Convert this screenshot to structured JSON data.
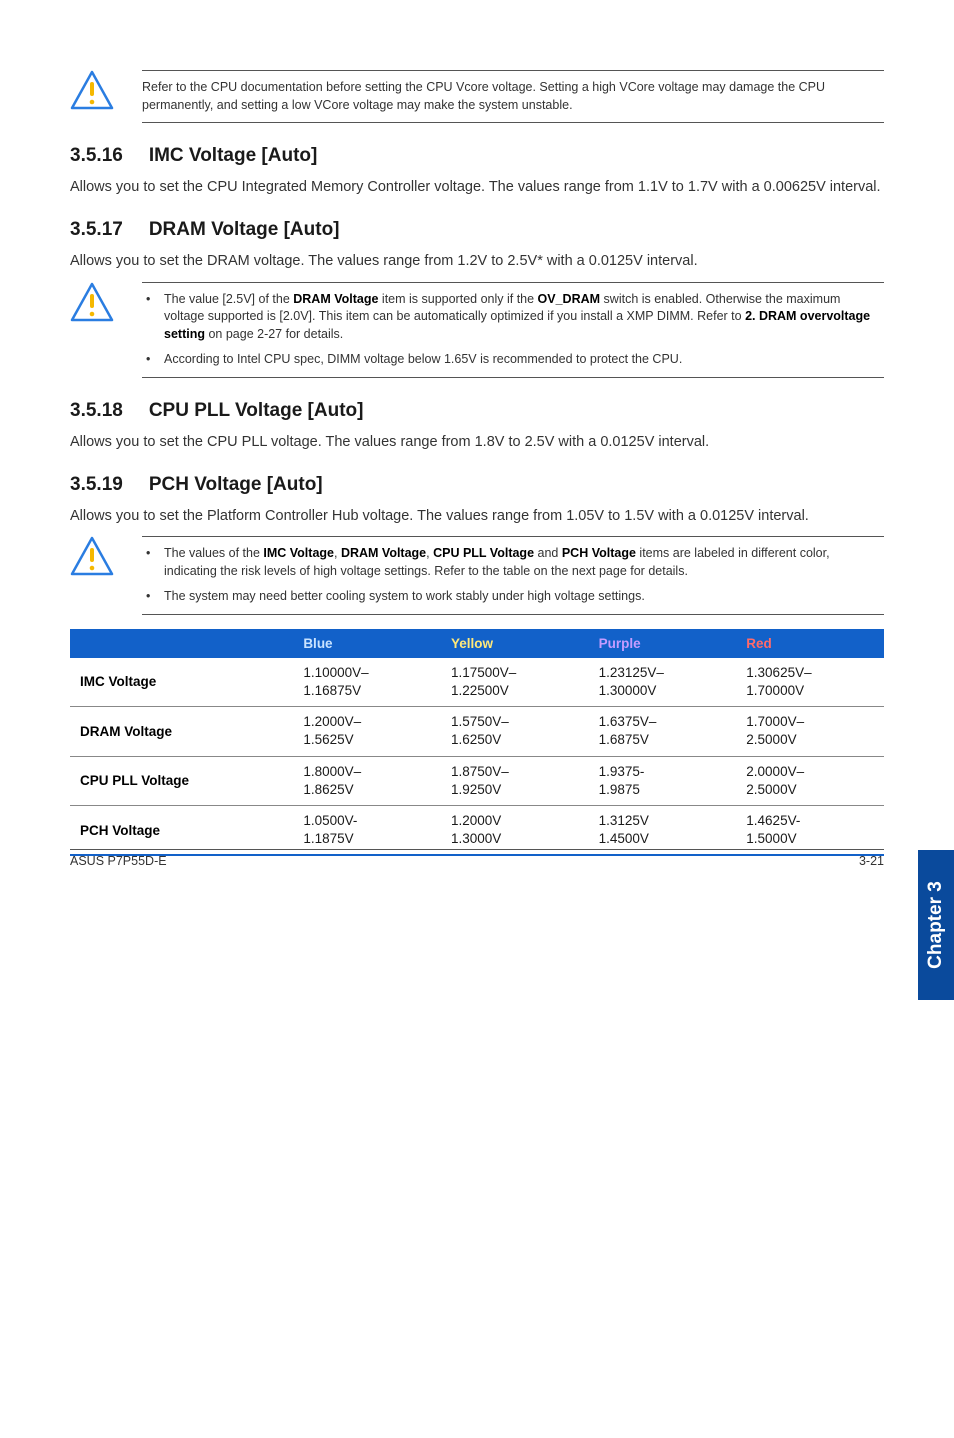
{
  "caution_top": "Refer to the CPU documentation before setting the CPU Vcore voltage. Setting a high VCore voltage may damage the CPU permanently, and setting a low VCore voltage may make the system unstable.",
  "s1": {
    "num": "3.5.16",
    "title": "IMC Voltage [Auto]",
    "body": "Allows you to set the CPU Integrated Memory Controller voltage. The values range from 1.1V to 1.7V with a 0.00625V interval."
  },
  "s2": {
    "num": "3.5.17",
    "title": "DRAM Voltage [Auto]",
    "body": "Allows you to set the DRAM voltage. The values range from 1.2V to 2.5V* with a 0.0125V interval."
  },
  "caution_dram": {
    "item1_pre": "The value [2.5V] of the ",
    "item1_b1": "DRAM Voltage",
    "item1_mid1": " item is supported only if the ",
    "item1_b2": "OV_DRAM",
    "item1_mid2": " switch is enabled. Otherwise the maximum voltage supported is [2.0V]. This item can be automatically optimized if you install a XMP DIMM. Refer to ",
    "item1_b3": "2. DRAM overvoltage setting",
    "item1_post": " on page 2-27 for details.",
    "item2": "According to Intel CPU spec, DIMM voltage below 1.65V is recommended to protect the CPU."
  },
  "s3": {
    "num": "3.5.18",
    "title": "CPU PLL Voltage [Auto]",
    "body": "Allows you to set the CPU PLL voltage. The values range from 1.8V to 2.5V with a 0.0125V interval."
  },
  "s4": {
    "num": "3.5.19",
    "title": "PCH Voltage [Auto]",
    "body": "Allows you to set the Platform Controller Hub voltage. The values range from 1.05V to 1.5V with a 0.0125V interval."
  },
  "caution_pch": {
    "item1_pre": "The values of the ",
    "item1_b1": "IMC Voltage",
    "item1_s1": ", ",
    "item1_b2": "DRAM Voltage",
    "item1_s2": ", ",
    "item1_b3": "CPU PLL Voltage",
    "item1_s3": " and ",
    "item1_b4": "PCH Voltage",
    "item1_post": " items are labeled in different color, indicating the risk levels of high voltage settings. Refer to the table on the next page for details.",
    "item2": "The system may need better cooling system to work stably under high voltage settings."
  },
  "table": {
    "header_bg": "#1261c9",
    "row_border": "#888888",
    "bottom_border": "#1261c9",
    "headers": {
      "blue": {
        "label": "Blue",
        "color": "#c9e3ff"
      },
      "yellow": {
        "label": "Yellow",
        "color": "#ffe97a"
      },
      "purple": {
        "label": "Purple",
        "color": "#c59cff"
      },
      "red": {
        "label": "Red",
        "color": "#ff6a6a"
      }
    },
    "rows": [
      {
        "name": "IMC Voltage",
        "blue_a": "1.10000V–",
        "blue_b": "1.16875V",
        "yellow_a": "1.17500V–",
        "yellow_b": "1.22500V",
        "purple_a": "1.23125V–",
        "purple_b": "1.30000V",
        "red_a": "1.30625V–",
        "red_b": "1.70000V"
      },
      {
        "name": "DRAM Voltage",
        "blue_a": "1.2000V–",
        "blue_b": "1.5625V",
        "yellow_a": "1.5750V–",
        "yellow_b": "1.6250V",
        "purple_a": "1.6375V–",
        "purple_b": "1.6875V",
        "red_a": "1.7000V–",
        "red_b": "2.5000V"
      },
      {
        "name": "CPU PLL Voltage",
        "blue_a": "1.8000V–",
        "blue_b": "1.8625V",
        "yellow_a": "1.8750V–",
        "yellow_b": "1.9250V",
        "purple_a": "1.9375-",
        "purple_b": "1.9875",
        "red_a": "2.0000V–",
        "red_b": "2.5000V"
      },
      {
        "name": "PCH Voltage",
        "blue_a": "1.0500V-",
        "blue_b": "1.1875V",
        "yellow_a": "1.2000V",
        "yellow_b": "1.3000V",
        "purple_a": "1.3125V",
        "purple_b": "1.4500V",
        "red_a": "1.4625V-",
        "red_b": "1.5000V"
      }
    ]
  },
  "sidetab": "Chapter 3",
  "footer": {
    "left": "ASUS P7P55D-E",
    "right": "3-21"
  }
}
